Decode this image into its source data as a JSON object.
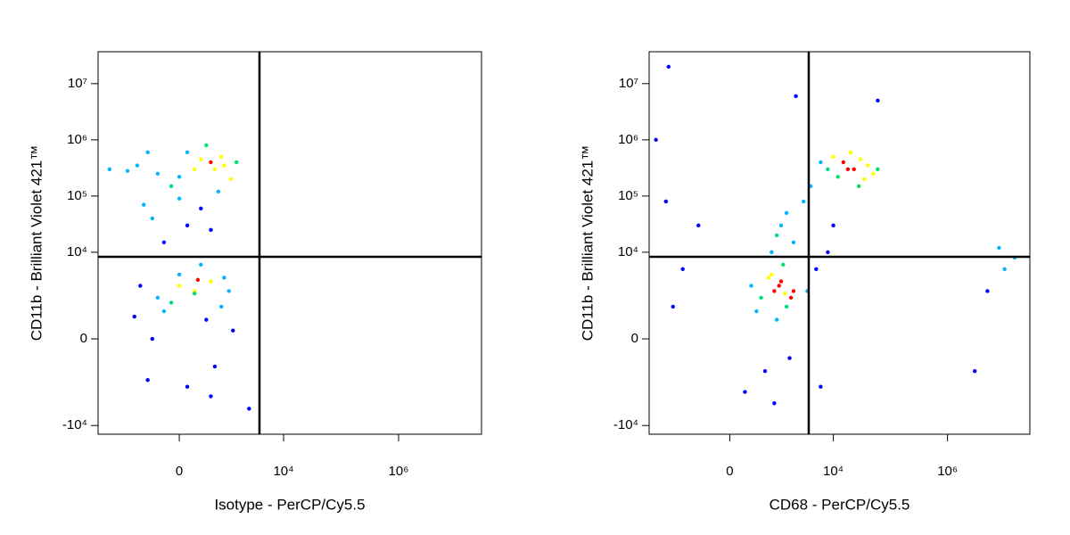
{
  "chart_data": [
    {
      "type": "scatter",
      "x_label": "Isotype - PerCP/Cy5.5",
      "y_label": "CD11b - Brilliant Violet 421™",
      "x_scale": {
        "type": "biexponential",
        "width": 307
      },
      "y_scale": {
        "type": "biexponential",
        "width": 575
      },
      "xlim": [
        -3960,
        27700000
      ],
      "ylim": [
        -14300,
        37000000
      ],
      "xticks": [
        0,
        {
          "value": 10000,
          "label": "10⁴"
        },
        {
          "value": 1000000,
          "label": "10⁶"
        }
      ],
      "yticks": [
        {
          "value": -10000,
          "label": "-10⁴"
        },
        0,
        {
          "value": 10000,
          "label": "10⁴"
        },
        {
          "value": 100000,
          "label": "10⁵"
        },
        {
          "value": 1000000,
          "label": "10⁶"
        },
        {
          "value": 10000000,
          "label": "10⁷"
        }
      ],
      "gates": {
        "x": 3800,
        "y": 8300
      },
      "colormap": [
        "#0000ff",
        "#00b4ff",
        "#00e070",
        "#ffff00",
        "#ff0000"
      ],
      "points": {
        "x": [
          200,
          500,
          -300,
          800,
          100,
          -800,
          1200,
          400,
          -100,
          600,
          300,
          -500,
          900,
          0,
          1500,
          -1200,
          0,
          300,
          -400,
          500,
          -200,
          700,
          100,
          -600,
          200,
          500,
          -300,
          800,
          0,
          -700,
          1100,
          400,
          -100,
          300,
          -400,
          600,
          100,
          -200,
          900,
          0,
          200,
          -900,
          1300,
          500,
          -500,
          250,
          -2500,
          2500
        ],
        "y": [
          300000,
          400000,
          250000,
          500000,
          600000,
          350000,
          200000,
          800000,
          150000,
          300000,
          450000,
          600000,
          350000,
          220000,
          400000,
          280000,
          90000,
          60000,
          40000,
          25000,
          15000,
          120000,
          30000,
          70000,
          2000,
          3000,
          1500,
          1000,
          4000,
          2500,
          2000,
          500,
          1200,
          6000,
          0,
          -800,
          -2000,
          800,
          3500,
          2500,
          1800,
          600,
          200,
          -3000,
          -1500,
          3200,
          300000,
          -5000
        ]
      }
    },
    {
      "type": "scatter",
      "x_label": "CD68 - PerCP/Cy5.5",
      "y_label": "CD11b - Brilliant Violet 421™",
      "x_scale": {
        "type": "biexponential",
        "width": 307
      },
      "y_scale": {
        "type": "biexponential",
        "width": 575
      },
      "xlim": [
        -3960,
        27700000
      ],
      "ylim": [
        -14300,
        37000000
      ],
      "xticks": [
        0,
        {
          "value": 10000,
          "label": "10⁴"
        },
        {
          "value": 1000000,
          "label": "10⁶"
        }
      ],
      "yticks": [
        {
          "value": -10000,
          "label": "-10⁴"
        },
        0,
        {
          "value": 10000,
          "label": "10⁴"
        },
        {
          "value": 100000,
          "label": "10⁵"
        },
        {
          "value": 1000000,
          "label": "10⁶"
        },
        {
          "value": 10000000,
          "label": "10⁷"
        }
      ],
      "gates": {
        "x": 3700,
        "y": 8300
      },
      "colormap": [
        "#0000ff",
        "#00b4ff",
        "#00e070",
        "#ffff00",
        "#ff0000"
      ],
      "points": {
        "x": [
          23000,
          15000,
          35000,
          10000,
          40000,
          20000,
          8000,
          50000,
          28000,
          12000,
          30000,
          60000,
          6000,
          18000,
          900,
          1200,
          500,
          1500,
          800,
          300,
          2000,
          1000,
          600,
          1300,
          1700,
          400,
          1100,
          700,
          1800,
          200,
          900,
          1400,
          1000,
          1500,
          800,
          1200,
          2000,
          -500,
          3000,
          -1000,
          -1500,
          3500,
          5000,
          8000,
          10000,
          6000,
          -2000,
          4000,
          10000000,
          5000000,
          15000000,
          3000000,
          8000000,
          -1800,
          2200,
          60000,
          -3000
        ],
        "y": [
          300000,
          400000,
          200000,
          500000,
          350000,
          600000,
          300000,
          250000,
          150000,
          220000,
          450000,
          300000,
          400000,
          300000,
          2000,
          3000,
          1500,
          1000,
          4000,
          2500,
          2000,
          500,
          -1000,
          6000,
          -500,
          800,
          2500,
          3500,
          1500,
          -2500,
          -4000,
          1800,
          20000,
          50000,
          10000,
          30000,
          15000,
          30000,
          80000,
          5000,
          1000,
          2000,
          5000,
          10000,
          30000,
          -2000,
          80000,
          150000,
          5000,
          2000,
          8000,
          -1000,
          12000,
          20000000,
          6000000,
          5000000,
          1000000
        ]
      }
    }
  ]
}
